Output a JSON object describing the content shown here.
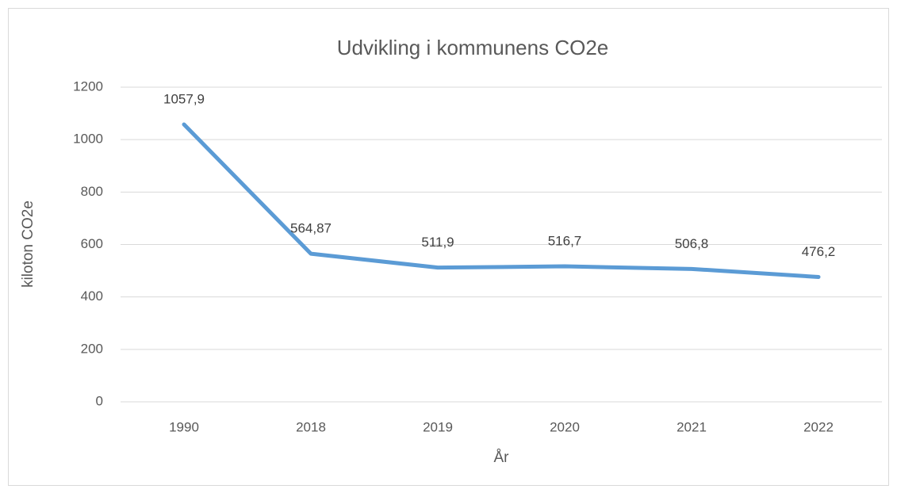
{
  "chart_data": {
    "type": "line",
    "title": "Udvikling i kommunens CO2e",
    "x_label": "År",
    "y_label": "kiloton CO2e",
    "categories": [
      "1990",
      "2018",
      "2019",
      "2020",
      "2021",
      "2022"
    ],
    "values": [
      1057.9,
      564.87,
      511.9,
      516.7,
      506.8,
      476.2
    ],
    "value_labels": [
      "1057,9",
      "564,87",
      "511,9",
      "516,7",
      "506,8",
      "476,2"
    ],
    "color": "#5b9bd5",
    "ylim": [
      0,
      1200
    ],
    "yticks": [
      0,
      200,
      400,
      600,
      800,
      1000,
      1200
    ],
    "grid": true
  }
}
